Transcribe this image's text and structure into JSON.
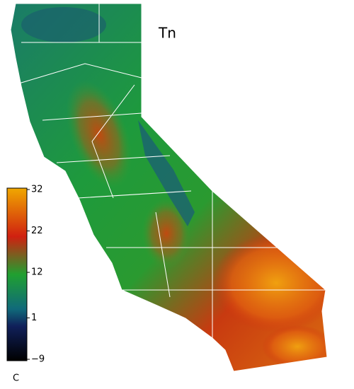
{
  "title": "Tn",
  "colorbar": {
    "unit": "C",
    "lim": [
      -9,
      32
    ],
    "ticks": [
      {
        "value": -9,
        "label": "−9"
      },
      1,
      12,
      22,
      32
    ]
  }
}
